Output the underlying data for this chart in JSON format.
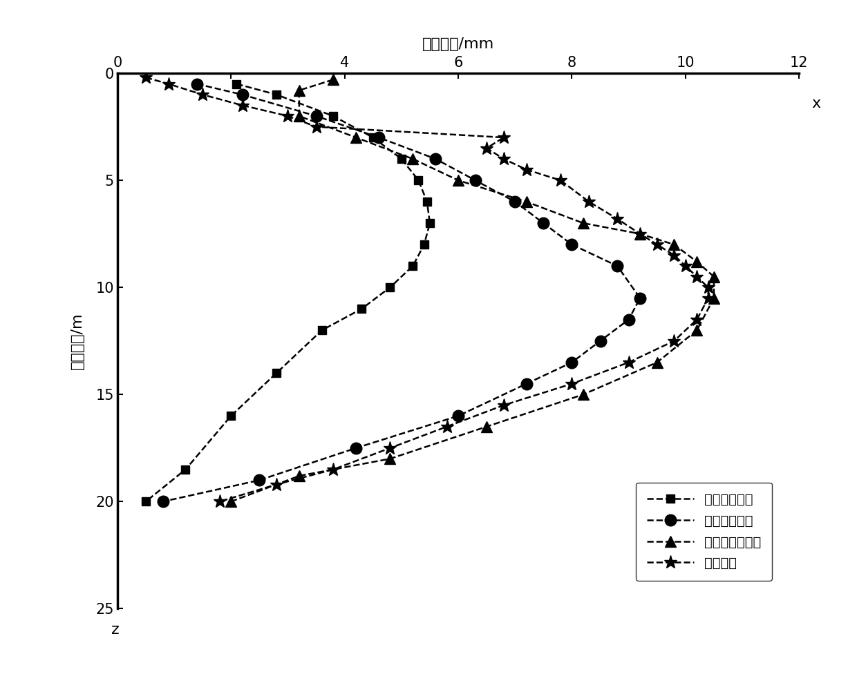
{
  "series": {
    "uniform_radial": {
      "label": "均匀径向收敌",
      "marker": "s",
      "markersize": 9,
      "x": [
        2.1,
        2.8,
        3.8,
        4.5,
        5.0,
        5.3,
        5.45,
        5.5,
        5.4,
        5.2,
        4.8,
        4.3,
        3.6,
        2.8,
        2.0,
        1.2,
        0.5
      ],
      "y": [
        0.5,
        1.0,
        2.0,
        3.0,
        4.0,
        5.0,
        6.0,
        7.0,
        8.0,
        9.0,
        10.0,
        11.0,
        12.0,
        14.0,
        16.0,
        18.5,
        20.0
      ]
    },
    "uniform_vertical": {
      "label": "均匀绝向收敌",
      "marker": "o",
      "markersize": 12,
      "x": [
        1.4,
        2.2,
        3.5,
        4.6,
        5.6,
        6.3,
        7.0,
        7.5,
        8.0,
        8.8,
        9.2,
        9.0,
        8.5,
        8.0,
        7.2,
        6.0,
        4.2,
        2.5,
        0.8
      ],
      "y": [
        0.5,
        1.0,
        2.0,
        3.0,
        4.0,
        5.0,
        6.0,
        7.0,
        8.0,
        9.0,
        10.5,
        11.5,
        12.5,
        13.5,
        14.5,
        16.0,
        17.5,
        19.0,
        20.0
      ]
    },
    "nonuniform_vertical": {
      "label": "不均匀绝向收敌",
      "marker": "^",
      "markersize": 11,
      "x": [
        3.8,
        3.2,
        3.2,
        4.2,
        5.2,
        6.0,
        7.2,
        8.2,
        9.2,
        9.8,
        10.2,
        10.5,
        10.5,
        10.2,
        9.5,
        8.2,
        6.5,
        4.8,
        3.2,
        2.0
      ],
      "y": [
        0.3,
        0.8,
        2.0,
        3.0,
        4.0,
        5.0,
        6.0,
        7.0,
        7.5,
        8.0,
        8.8,
        9.5,
        10.5,
        12.0,
        13.5,
        15.0,
        16.5,
        18.0,
        18.8,
        20.0
      ]
    },
    "measured": {
      "label": "实测数据",
      "marker": "*",
      "markersize": 14,
      "x": [
        0.5,
        0.9,
        1.5,
        2.2,
        3.0,
        3.5,
        6.8,
        6.5,
        6.8,
        7.2,
        7.8,
        8.3,
        8.8,
        9.2,
        9.5,
        9.8,
        10.0,
        10.2,
        10.4,
        10.4,
        10.2,
        9.8,
        9.0,
        8.0,
        6.8,
        5.8,
        4.8,
        3.8,
        2.8,
        1.8
      ],
      "y": [
        0.2,
        0.5,
        1.0,
        1.5,
        2.0,
        2.5,
        3.0,
        3.5,
        4.0,
        4.5,
        5.0,
        6.0,
        6.8,
        7.5,
        8.0,
        8.5,
        9.0,
        9.5,
        10.0,
        10.5,
        11.5,
        12.5,
        13.5,
        14.5,
        15.5,
        16.5,
        17.5,
        18.5,
        19.2,
        20.0
      ]
    }
  },
  "xlim": [
    0,
    12
  ],
  "ylim": [
    0,
    25
  ],
  "xticks": [
    0,
    2,
    4,
    6,
    8,
    10,
    12
  ],
  "xtick_labels": [
    "0",
    "",
    "4",
    "6",
    "8",
    "10",
    "12"
  ],
  "yticks": [
    0,
    5,
    10,
    15,
    20,
    25
  ],
  "ytick_labels": [
    "0",
    "5",
    "10",
    "15",
    "20",
    "25"
  ],
  "xlabel_top": "水平位移/mm",
  "xlabel_right": "x",
  "ylabel": "地层埋深/m",
  "ylabel_bottom": "z",
  "background_color": "#ffffff",
  "linewidth": 1.8,
  "spine_linewidth": 2.5
}
